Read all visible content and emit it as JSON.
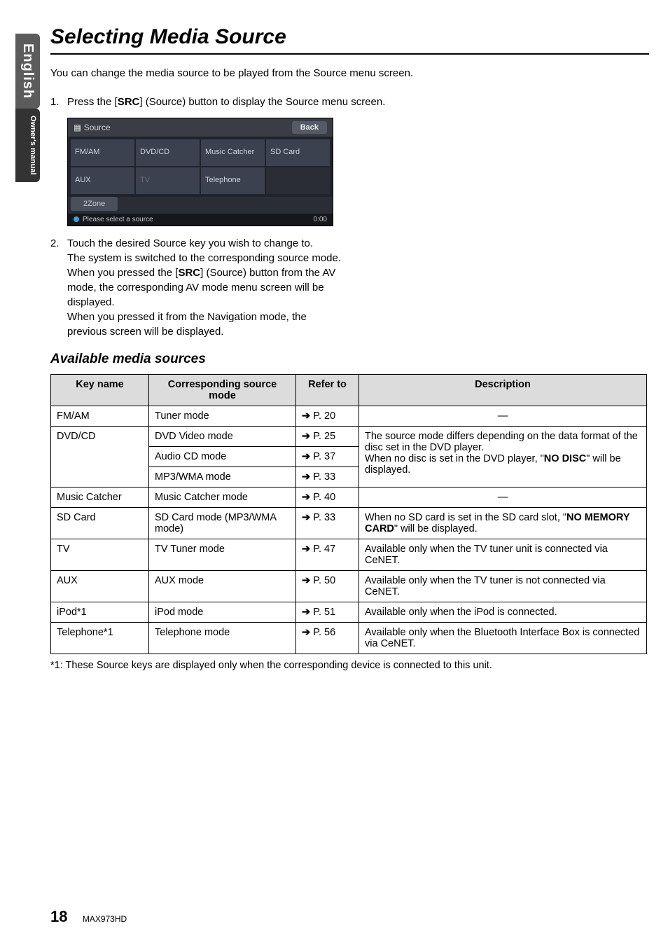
{
  "sidebar": {
    "tab_english": "English",
    "tab_owners": "Owner's manual"
  },
  "title": "Selecting Media Source",
  "intro": "You can change the media source to be played from the Source menu screen.",
  "step1": {
    "num": "1.",
    "text_a": "Press the [",
    "src": "SRC",
    "text_b": "] (Source) button to display the Source menu screen."
  },
  "screenshot": {
    "header_icon": "▦",
    "header_title": "Source",
    "back": "Back",
    "cells": [
      "FM/AM",
      "DVD/CD",
      "Music Catcher",
      "SD Card",
      "AUX",
      "TV",
      "Telephone",
      ""
    ],
    "dim_indices": [
      5
    ],
    "twozone": "2Zone",
    "footer_text": "Please select a source",
    "footer_time": "0:00",
    "colors": {
      "panel_bg": "#2a2d36",
      "cell_bg": "#3c4150",
      "cell_text": "#cfd4de",
      "dim_text": "#6a6f7a"
    }
  },
  "step2": {
    "num": "2.",
    "line1": "Touch the desired Source key you wish to change to.",
    "line2": "The system is switched to the corresponding source mode.",
    "line3a": "When you pressed the [",
    "src": "SRC",
    "line3b": "] (Source) button from the AV mode, the corresponding AV mode menu screen will be displayed.",
    "line4": "When you pressed it from the Navigation mode, the previous screen will be displayed."
  },
  "subheading": "Available media sources",
  "table": {
    "headers": [
      "Key name",
      "Corresponding source mode",
      "Refer to",
      "Description"
    ],
    "arrow": "➔",
    "rows": {
      "fmam": {
        "key": "FM/AM",
        "mode": "Tuner mode",
        "ref": "P. 20",
        "desc": "—"
      },
      "dvdcd": {
        "key": "DVD/CD",
        "modes": [
          "DVD Video mode",
          "Audio CD mode",
          "MP3/WMA mode"
        ],
        "refs": [
          "P. 25",
          "P. 37",
          "P. 33"
        ],
        "desc_a": "The source mode differs depending on the data format of the disc set in the DVD player.",
        "desc_b_pre": "When no disc is set in the DVD player, \"",
        "desc_b_bold": "NO DISC",
        "desc_b_post": "\" will be displayed."
      },
      "mc": {
        "key": "Music Catcher",
        "mode": "Music Catcher mode",
        "ref": "P. 40",
        "desc": "—"
      },
      "sd": {
        "key": "SD Card",
        "mode": "SD Card mode (MP3/WMA mode)",
        "ref": "P. 33",
        "desc_pre": "When no SD card is set in the SD card slot, \"",
        "desc_bold": "NO MEMORY CARD",
        "desc_post": "\" will be displayed."
      },
      "tv": {
        "key": "TV",
        "mode": "TV Tuner mode",
        "ref": "P. 47",
        "desc": "Available only when the TV tuner unit is connected via CeNET."
      },
      "aux": {
        "key": "AUX",
        "mode": "AUX mode",
        "ref": "P. 50",
        "desc": "Available only when the TV tuner is not connected via CeNET."
      },
      "ipod": {
        "key": "iPod*1",
        "mode": "iPod mode",
        "ref": "P. 51",
        "desc": "Available only when the iPod is connected."
      },
      "tel": {
        "key": "Telephone*1",
        "mode": "Telephone mode",
        "ref": "P. 56",
        "desc": "Available only when the Bluetooth Interface Box is connected via CeNET."
      }
    }
  },
  "footnote": "*1: These Source keys are displayed only when the corresponding device is connected to this unit.",
  "footer": {
    "page_num": "18",
    "model": "MAX973HD"
  }
}
